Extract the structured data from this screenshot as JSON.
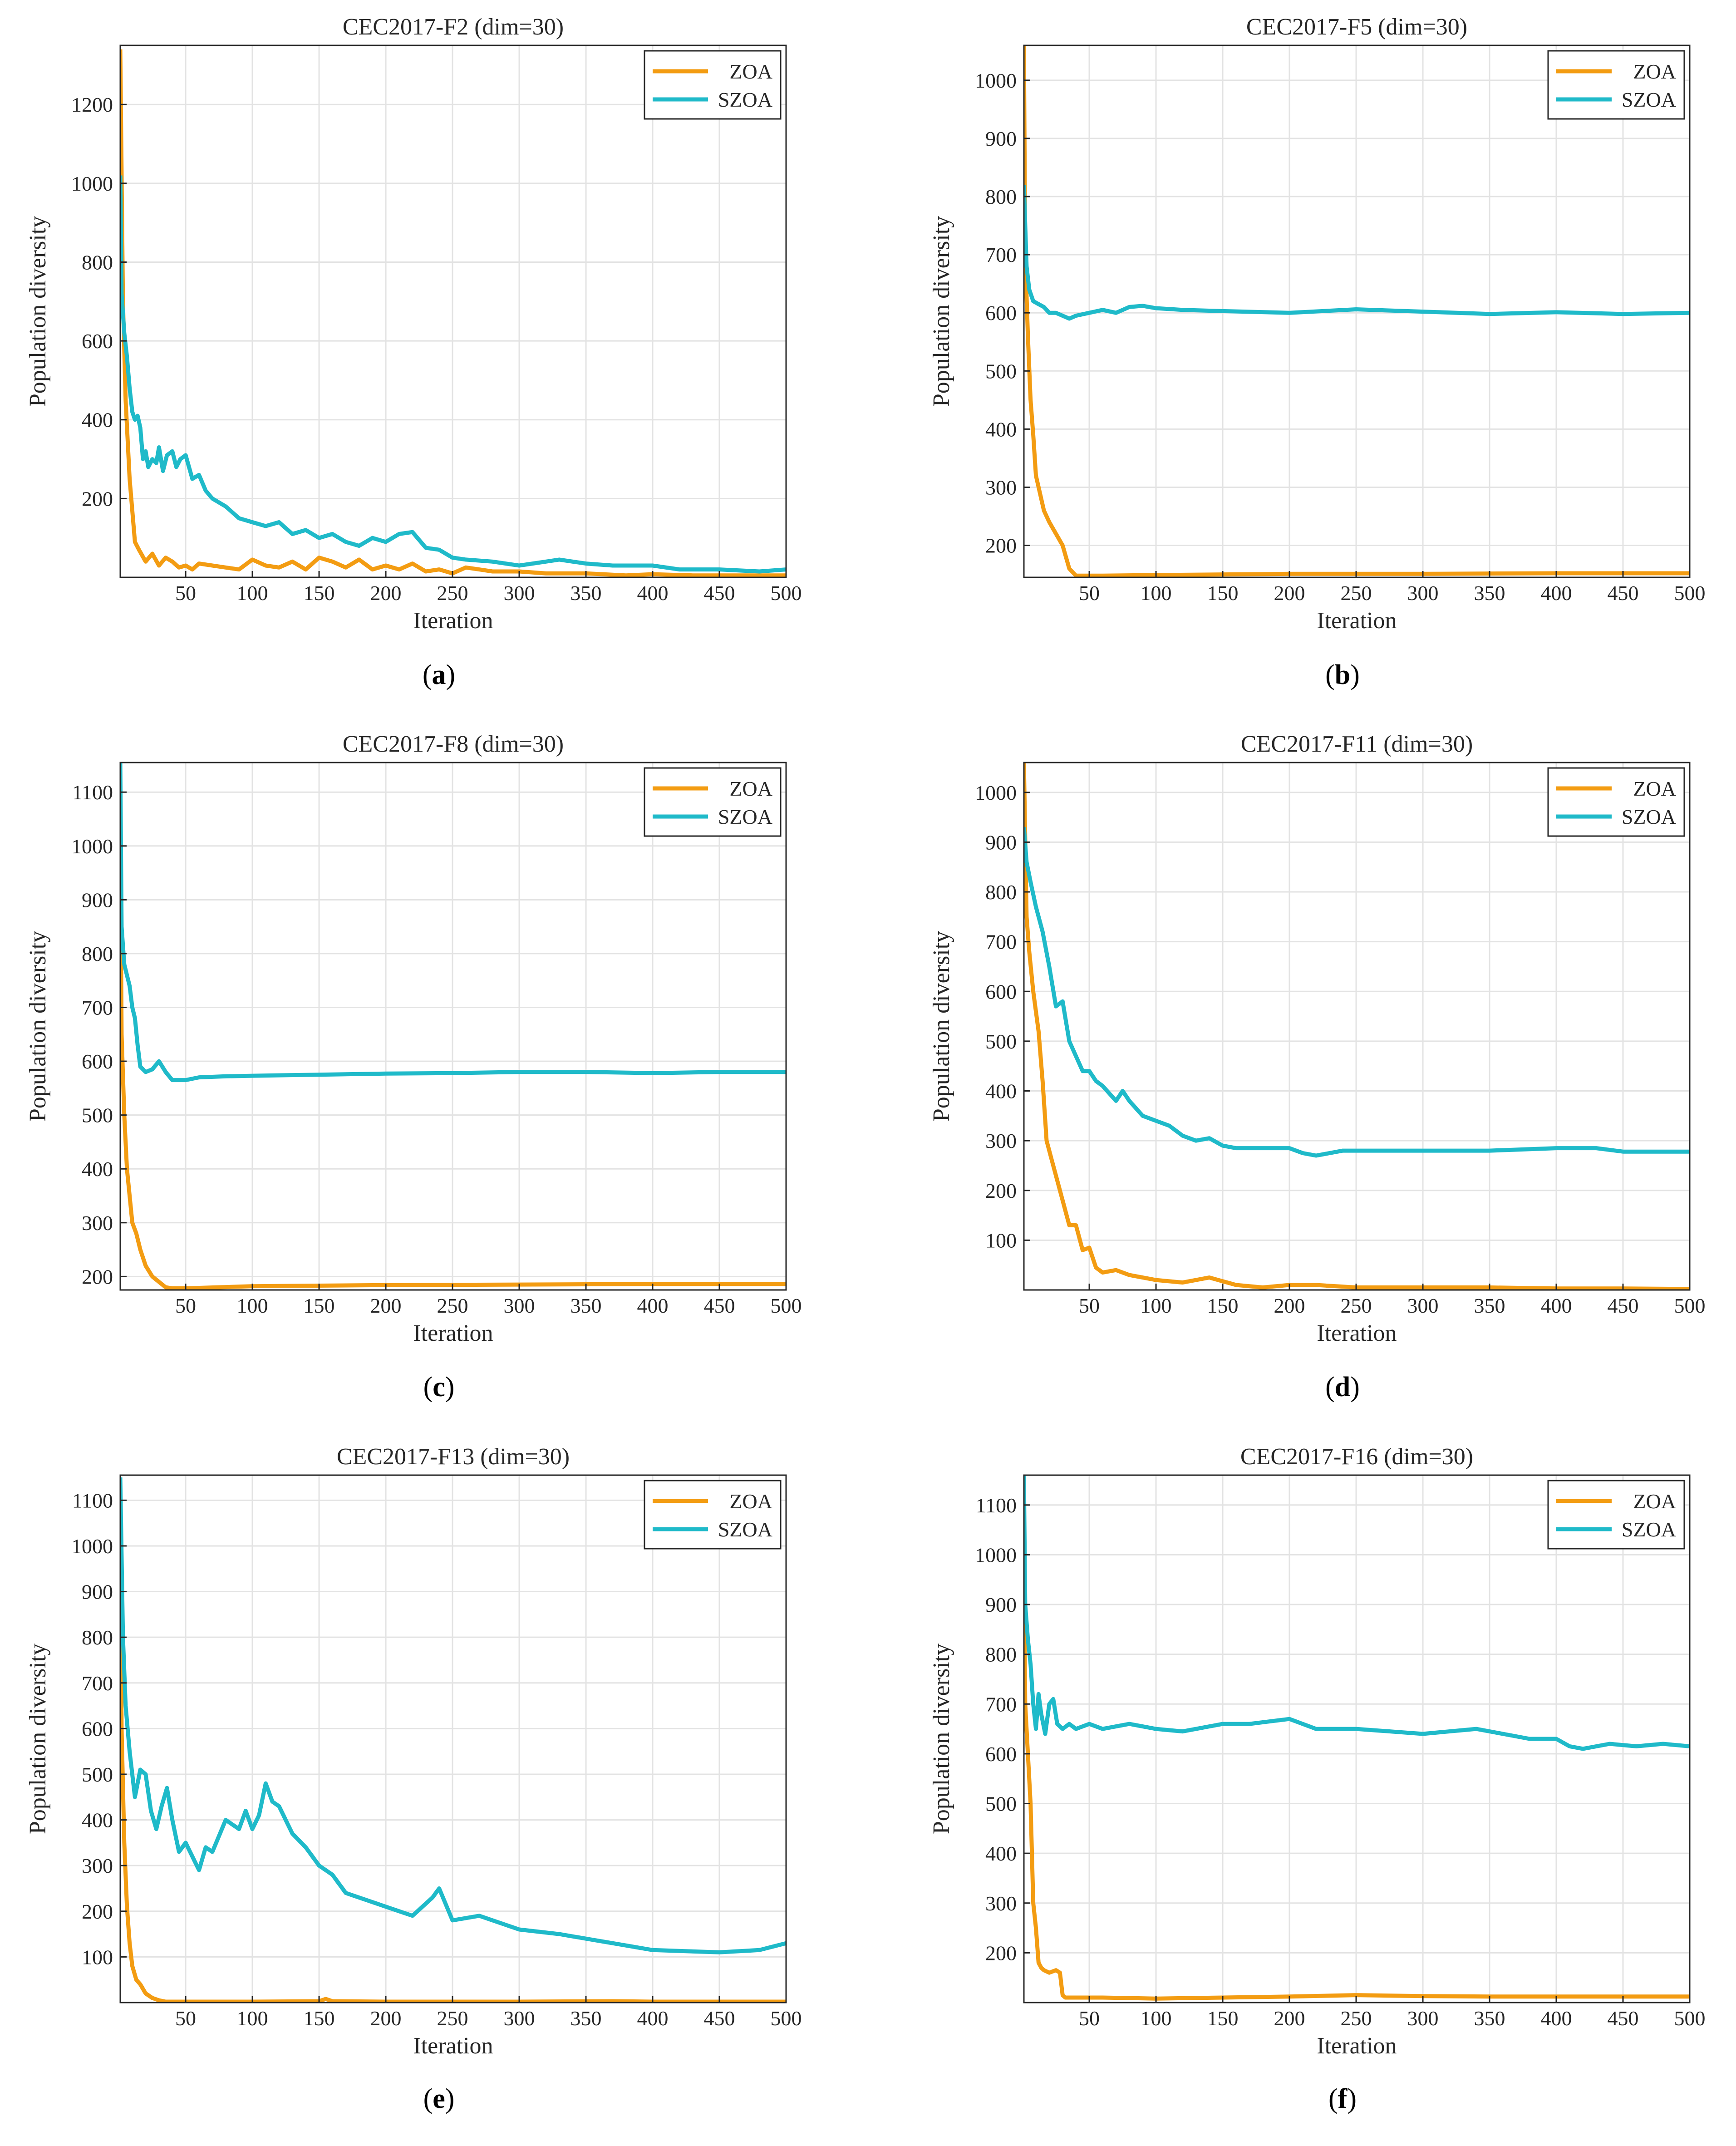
{
  "colors": {
    "ZOA": "#F39C12",
    "SZOA": "#1FBAC9"
  },
  "chart_data": [
    {
      "type": "line",
      "caption": "a",
      "title": "CEC2017-F2 (dim=30)",
      "xlabel": "Iteration",
      "ylabel": "Population diversity",
      "xlim": [
        1,
        500
      ],
      "ylim": [
        0,
        1350
      ],
      "xticks": [
        50,
        100,
        150,
        200,
        250,
        300,
        350,
        400,
        450,
        500
      ],
      "yticks": [
        200,
        400,
        600,
        800,
        1000,
        1200
      ],
      "grid": true,
      "legend": "top-right",
      "series": [
        {
          "name": "ZOA",
          "color": "#F39C12",
          "x": [
            1,
            3,
            5,
            8,
            12,
            15,
            20,
            25,
            30,
            35,
            40,
            45,
            50,
            55,
            60,
            70,
            80,
            90,
            100,
            110,
            120,
            130,
            140,
            150,
            160,
            170,
            180,
            190,
            200,
            210,
            220,
            230,
            240,
            250,
            260,
            270,
            280,
            300,
            320,
            350,
            380,
            400,
            430,
            450,
            500
          ],
          "y": [
            1340,
            700,
            450,
            250,
            90,
            70,
            40,
            60,
            30,
            50,
            40,
            25,
            30,
            20,
            35,
            30,
            25,
            20,
            45,
            30,
            25,
            40,
            20,
            50,
            40,
            25,
            45,
            20,
            30,
            20,
            35,
            15,
            20,
            10,
            25,
            20,
            15,
            15,
            10,
            10,
            5,
            8,
            5,
            5,
            5
          ]
        },
        {
          "name": "SZOA",
          "color": "#1FBAC9",
          "x": [
            1,
            2,
            4,
            6,
            8,
            10,
            12,
            14,
            16,
            18,
            20,
            22,
            25,
            28,
            30,
            33,
            36,
            40,
            43,
            46,
            50,
            55,
            60,
            65,
            70,
            80,
            90,
            100,
            110,
            120,
            130,
            140,
            150,
            160,
            170,
            180,
            190,
            200,
            210,
            220,
            230,
            240,
            250,
            260,
            280,
            300,
            320,
            330,
            350,
            370,
            400,
            420,
            450,
            480,
            500
          ],
          "y": [
            1020,
            720,
            620,
            560,
            480,
            420,
            400,
            410,
            380,
            300,
            320,
            280,
            300,
            290,
            330,
            270,
            310,
            320,
            280,
            300,
            310,
            250,
            260,
            220,
            200,
            180,
            150,
            140,
            130,
            140,
            110,
            120,
            100,
            110,
            90,
            80,
            100,
            90,
            110,
            115,
            75,
            70,
            50,
            45,
            40,
            30,
            40,
            45,
            35,
            30,
            30,
            20,
            20,
            15,
            20
          ]
        }
      ]
    },
    {
      "type": "line",
      "caption": "b",
      "title": "CEC2017-F5 (dim=30)",
      "xlabel": "Iteration",
      "ylabel": "Population diversity",
      "xlim": [
        1,
        500
      ],
      "ylim": [
        145,
        1060
      ],
      "xticks": [
        50,
        100,
        150,
        200,
        250,
        300,
        350,
        400,
        450,
        500
      ],
      "yticks": [
        200,
        300,
        400,
        500,
        600,
        700,
        800,
        900,
        1000
      ],
      "grid": true,
      "legend": "top-right",
      "series": [
        {
          "name": "ZOA",
          "color": "#F39C12",
          "x": [
            1,
            2,
            4,
            6,
            8,
            10,
            13,
            16,
            20,
            25,
            30,
            35,
            40,
            60,
            100,
            200,
            300,
            400,
            500
          ],
          "y": [
            1060,
            700,
            560,
            450,
            390,
            320,
            290,
            260,
            240,
            220,
            200,
            160,
            148,
            148,
            149,
            151,
            151,
            152,
            152
          ]
        },
        {
          "name": "SZOA",
          "color": "#1FBAC9",
          "x": [
            1,
            3,
            5,
            8,
            12,
            16,
            20,
            25,
            30,
            35,
            40,
            50,
            60,
            70,
            80,
            90,
            100,
            120,
            150,
            200,
            250,
            300,
            350,
            400,
            450,
            500
          ],
          "y": [
            820,
            680,
            640,
            620,
            615,
            610,
            600,
            600,
            595,
            590,
            595,
            600,
            605,
            600,
            610,
            612,
            608,
            605,
            603,
            600,
            606,
            602,
            598,
            601,
            598,
            600
          ]
        }
      ]
    },
    {
      "type": "line",
      "caption": "c",
      "title": "CEC2017-F8 (dim=30)",
      "xlabel": "Iteration",
      "ylabel": "Population diversity",
      "xlim": [
        1,
        500
      ],
      "ylim": [
        175,
        1155
      ],
      "xticks": [
        50,
        100,
        150,
        200,
        250,
        300,
        350,
        400,
        450,
        500
      ],
      "yticks": [
        200,
        300,
        400,
        500,
        600,
        700,
        800,
        900,
        1000,
        1100
      ],
      "grid": true,
      "legend": "top-right",
      "series": [
        {
          "name": "ZOA",
          "color": "#F39C12",
          "x": [
            1,
            2,
            4,
            6,
            8,
            10,
            13,
            16,
            20,
            25,
            30,
            35,
            40,
            50,
            100,
            200,
            300,
            400,
            500
          ],
          "y": [
            1000,
            650,
            500,
            400,
            350,
            300,
            280,
            250,
            220,
            200,
            190,
            180,
            178,
            178,
            182,
            184,
            185,
            186,
            186
          ]
        },
        {
          "name": "SZOA",
          "color": "#1FBAC9",
          "x": [
            1,
            2,
            4,
            6,
            8,
            10,
            12,
            14,
            16,
            20,
            25,
            30,
            35,
            40,
            50,
            60,
            80,
            100,
            150,
            200,
            250,
            300,
            350,
            400,
            450,
            500
          ],
          "y": [
            1155,
            850,
            780,
            760,
            740,
            700,
            680,
            630,
            590,
            580,
            585,
            600,
            580,
            565,
            565,
            570,
            572,
            573,
            575,
            577,
            578,
            580,
            580,
            578,
            580,
            580
          ]
        }
      ]
    },
    {
      "type": "line",
      "caption": "d",
      "title": "CEC2017-F11 (dim=30)",
      "xlabel": "Iteration",
      "ylabel": "Population diversity",
      "xlim": [
        1,
        500
      ],
      "ylim": [
        0,
        1060
      ],
      "xticks": [
        50,
        100,
        150,
        200,
        250,
        300,
        350,
        400,
        450,
        500
      ],
      "yticks": [
        100,
        200,
        300,
        400,
        500,
        600,
        700,
        800,
        900,
        1000
      ],
      "grid": true,
      "legend": "top-right",
      "series": [
        {
          "name": "ZOA",
          "color": "#F39C12",
          "x": [
            1,
            3,
            5,
            8,
            12,
            15,
            18,
            22,
            26,
            30,
            35,
            40,
            45,
            50,
            55,
            60,
            70,
            80,
            90,
            100,
            120,
            140,
            160,
            180,
            200,
            220,
            250,
            300,
            350,
            400,
            450,
            500
          ],
          "y": [
            1060,
            750,
            680,
            600,
            520,
            420,
            300,
            260,
            220,
            180,
            130,
            130,
            80,
            85,
            45,
            35,
            40,
            30,
            25,
            20,
            15,
            25,
            10,
            5,
            10,
            10,
            5,
            5,
            5,
            3,
            3,
            2
          ]
        },
        {
          "name": "SZOA",
          "color": "#1FBAC9",
          "x": [
            1,
            3,
            6,
            10,
            15,
            20,
            25,
            30,
            35,
            40,
            45,
            50,
            55,
            60,
            70,
            75,
            80,
            90,
            100,
            110,
            120,
            130,
            140,
            150,
            160,
            180,
            200,
            210,
            220,
            240,
            260,
            300,
            350,
            400,
            430,
            450,
            500
          ],
          "y": [
            930,
            860,
            820,
            770,
            720,
            650,
            570,
            580,
            500,
            470,
            440,
            440,
            420,
            410,
            380,
            400,
            380,
            350,
            340,
            330,
            310,
            300,
            305,
            290,
            285,
            285,
            285,
            275,
            270,
            280,
            280,
            280,
            280,
            285,
            285,
            278,
            278
          ]
        }
      ]
    },
    {
      "type": "line",
      "caption": "e",
      "title": "CEC2017-F13 (dim=30)",
      "xlabel": "Iteration",
      "ylabel": "Population diversity",
      "xlim": [
        1,
        500
      ],
      "ylim": [
        0,
        1155
      ],
      "xticks": [
        50,
        100,
        150,
        200,
        250,
        300,
        350,
        400,
        450,
        500
      ],
      "yticks": [
        100,
        200,
        300,
        400,
        500,
        600,
        700,
        800,
        900,
        1000,
        1100
      ],
      "grid": true,
      "legend": "top-right",
      "series": [
        {
          "name": "ZOA",
          "color": "#F39C12",
          "x": [
            1,
            2,
            4,
            6,
            8,
            10,
            13,
            16,
            20,
            25,
            30,
            35,
            40,
            50,
            100,
            150,
            155,
            160,
            200,
            300,
            370,
            400,
            500
          ],
          "y": [
            980,
            600,
            350,
            210,
            130,
            80,
            50,
            40,
            20,
            10,
            5,
            2,
            2,
            2,
            2,
            3,
            8,
            3,
            2,
            2,
            3,
            2,
            2
          ]
        },
        {
          "name": "SZOA",
          "color": "#1FBAC9",
          "x": [
            1,
            3,
            5,
            8,
            12,
            16,
            20,
            24,
            28,
            32,
            36,
            40,
            45,
            50,
            55,
            60,
            65,
            70,
            80,
            90,
            95,
            100,
            105,
            110,
            115,
            120,
            125,
            130,
            140,
            150,
            160,
            170,
            180,
            200,
            220,
            235,
            240,
            250,
            270,
            300,
            330,
            350,
            380,
            400,
            450,
            480,
            500
          ],
          "y": [
            1150,
            800,
            650,
            550,
            450,
            510,
            500,
            420,
            380,
            430,
            470,
            400,
            330,
            350,
            320,
            290,
            340,
            330,
            400,
            380,
            420,
            380,
            410,
            480,
            440,
            430,
            400,
            370,
            340,
            300,
            280,
            240,
            230,
            210,
            190,
            230,
            250,
            180,
            190,
            160,
            150,
            140,
            125,
            115,
            110,
            115,
            130
          ]
        }
      ]
    },
    {
      "type": "line",
      "caption": "f",
      "title": "CEC2017-F16 (dim=30)",
      "xlabel": "Iteration",
      "ylabel": "Population diversity",
      "xlim": [
        1,
        500
      ],
      "ylim": [
        100,
        1160
      ],
      "xticks": [
        50,
        100,
        150,
        200,
        250,
        300,
        350,
        400,
        450,
        500
      ],
      "yticks": [
        200,
        300,
        400,
        500,
        600,
        700,
        800,
        900,
        1000,
        1100
      ],
      "grid": true,
      "legend": "top-right",
      "series": [
        {
          "name": "ZOA",
          "color": "#F39C12",
          "x": [
            1,
            2,
            4,
            6,
            8,
            10,
            12,
            14,
            16,
            20,
            25,
            28,
            30,
            32,
            40,
            60,
            100,
            150,
            200,
            250,
            300,
            350,
            400,
            450,
            500
          ],
          "y": [
            1000,
            700,
            600,
            500,
            300,
            250,
            180,
            170,
            165,
            160,
            165,
            160,
            115,
            110,
            110,
            110,
            108,
            110,
            112,
            115,
            113,
            112,
            112,
            112,
            112
          ]
        },
        {
          "name": "SZOA",
          "color": "#1FBAC9",
          "x": [
            1,
            2,
            4,
            6,
            8,
            10,
            12,
            14,
            17,
            20,
            23,
            26,
            30,
            35,
            40,
            50,
            60,
            80,
            100,
            120,
            150,
            170,
            200,
            220,
            250,
            300,
            340,
            360,
            380,
            400,
            410,
            420,
            440,
            460,
            480,
            500
          ],
          "y": [
            1160,
            900,
            830,
            780,
            700,
            650,
            720,
            680,
            640,
            700,
            710,
            660,
            650,
            660,
            650,
            660,
            650,
            660,
            650,
            645,
            660,
            660,
            670,
            650,
            650,
            640,
            650,
            640,
            630,
            630,
            615,
            610,
            620,
            615,
            620,
            615
          ]
        }
      ]
    }
  ]
}
